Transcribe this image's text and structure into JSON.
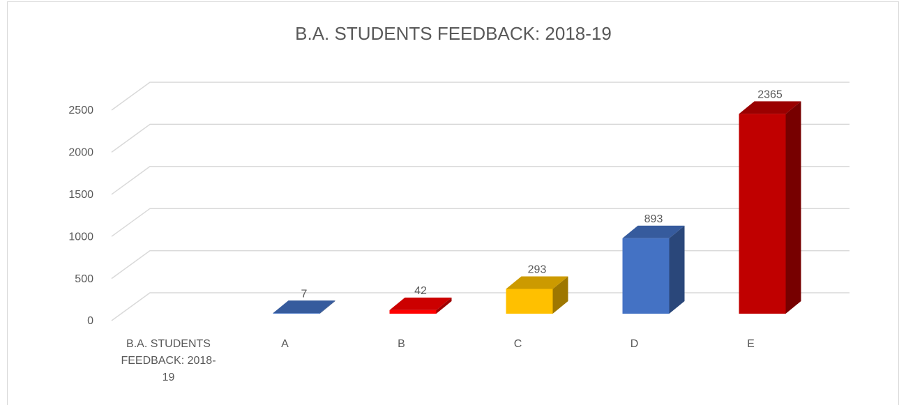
{
  "chart_data": {
    "type": "bar3d",
    "title": "B.A. STUDENTS FEEDBACK: 2018-19",
    "categories": [
      "B.A. STUDENTS FEEDBACK: 2018-19",
      "A",
      "B",
      "C",
      "D",
      "E"
    ],
    "values": [
      null,
      7,
      42,
      293,
      893,
      2365
    ],
    "colors": [
      null,
      "#4472c4",
      "#ff0000",
      "#ffc000",
      "#4472c4",
      "#c00000"
    ],
    "ylim": [
      0,
      2500
    ],
    "yticks": [
      0,
      500,
      1000,
      1500,
      2000,
      2500
    ],
    "grid": true
  }
}
